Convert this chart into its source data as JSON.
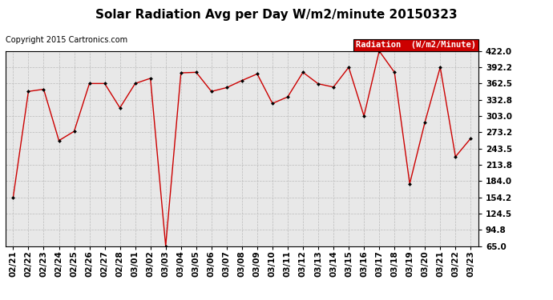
{
  "title": "Solar Radiation Avg per Day W/m2/minute 20150323",
  "copyright": "Copyright 2015 Cartronics.com",
  "legend_label": "Radiation  (W/m2/Minute)",
  "dates": [
    "02/21",
    "02/22",
    "02/23",
    "02/24",
    "02/25",
    "02/26",
    "02/27",
    "02/28",
    "03/01",
    "03/02",
    "03/03",
    "03/04",
    "03/05",
    "03/06",
    "03/07",
    "03/08",
    "03/09",
    "03/10",
    "03/11",
    "03/12",
    "03/13",
    "03/14",
    "03/15",
    "03/16",
    "03/17",
    "03/18",
    "03/19",
    "03/20",
    "03/21",
    "03/22",
    "03/23"
  ],
  "values": [
    154.2,
    348.0,
    352.0,
    258.0,
    275.0,
    362.5,
    362.5,
    318.0,
    362.5,
    372.0,
    65.0,
    382.0,
    383.0,
    348.0,
    355.0,
    368.0,
    380.0,
    326.0,
    338.0,
    383.0,
    362.0,
    356.0,
    392.2,
    303.0,
    422.0,
    383.0,
    179.0,
    292.0,
    392.2,
    228.5,
    262.0
  ],
  "line_color": "#cc0000",
  "marker_color": "#000000",
  "bg_color": "#ffffff",
  "plot_bg_color": "#e8e8e8",
  "grid_color": "#bbbbbb",
  "ylim": [
    65.0,
    422.0
  ],
  "yticks": [
    65.0,
    94.8,
    124.5,
    154.2,
    184.0,
    213.8,
    243.5,
    273.2,
    303.0,
    332.8,
    362.5,
    392.2,
    422.0
  ],
  "legend_bg": "#cc0000",
  "legend_text_color": "#ffffff",
  "title_fontsize": 11,
  "tick_fontsize": 7.5,
  "copyright_fontsize": 7.0
}
